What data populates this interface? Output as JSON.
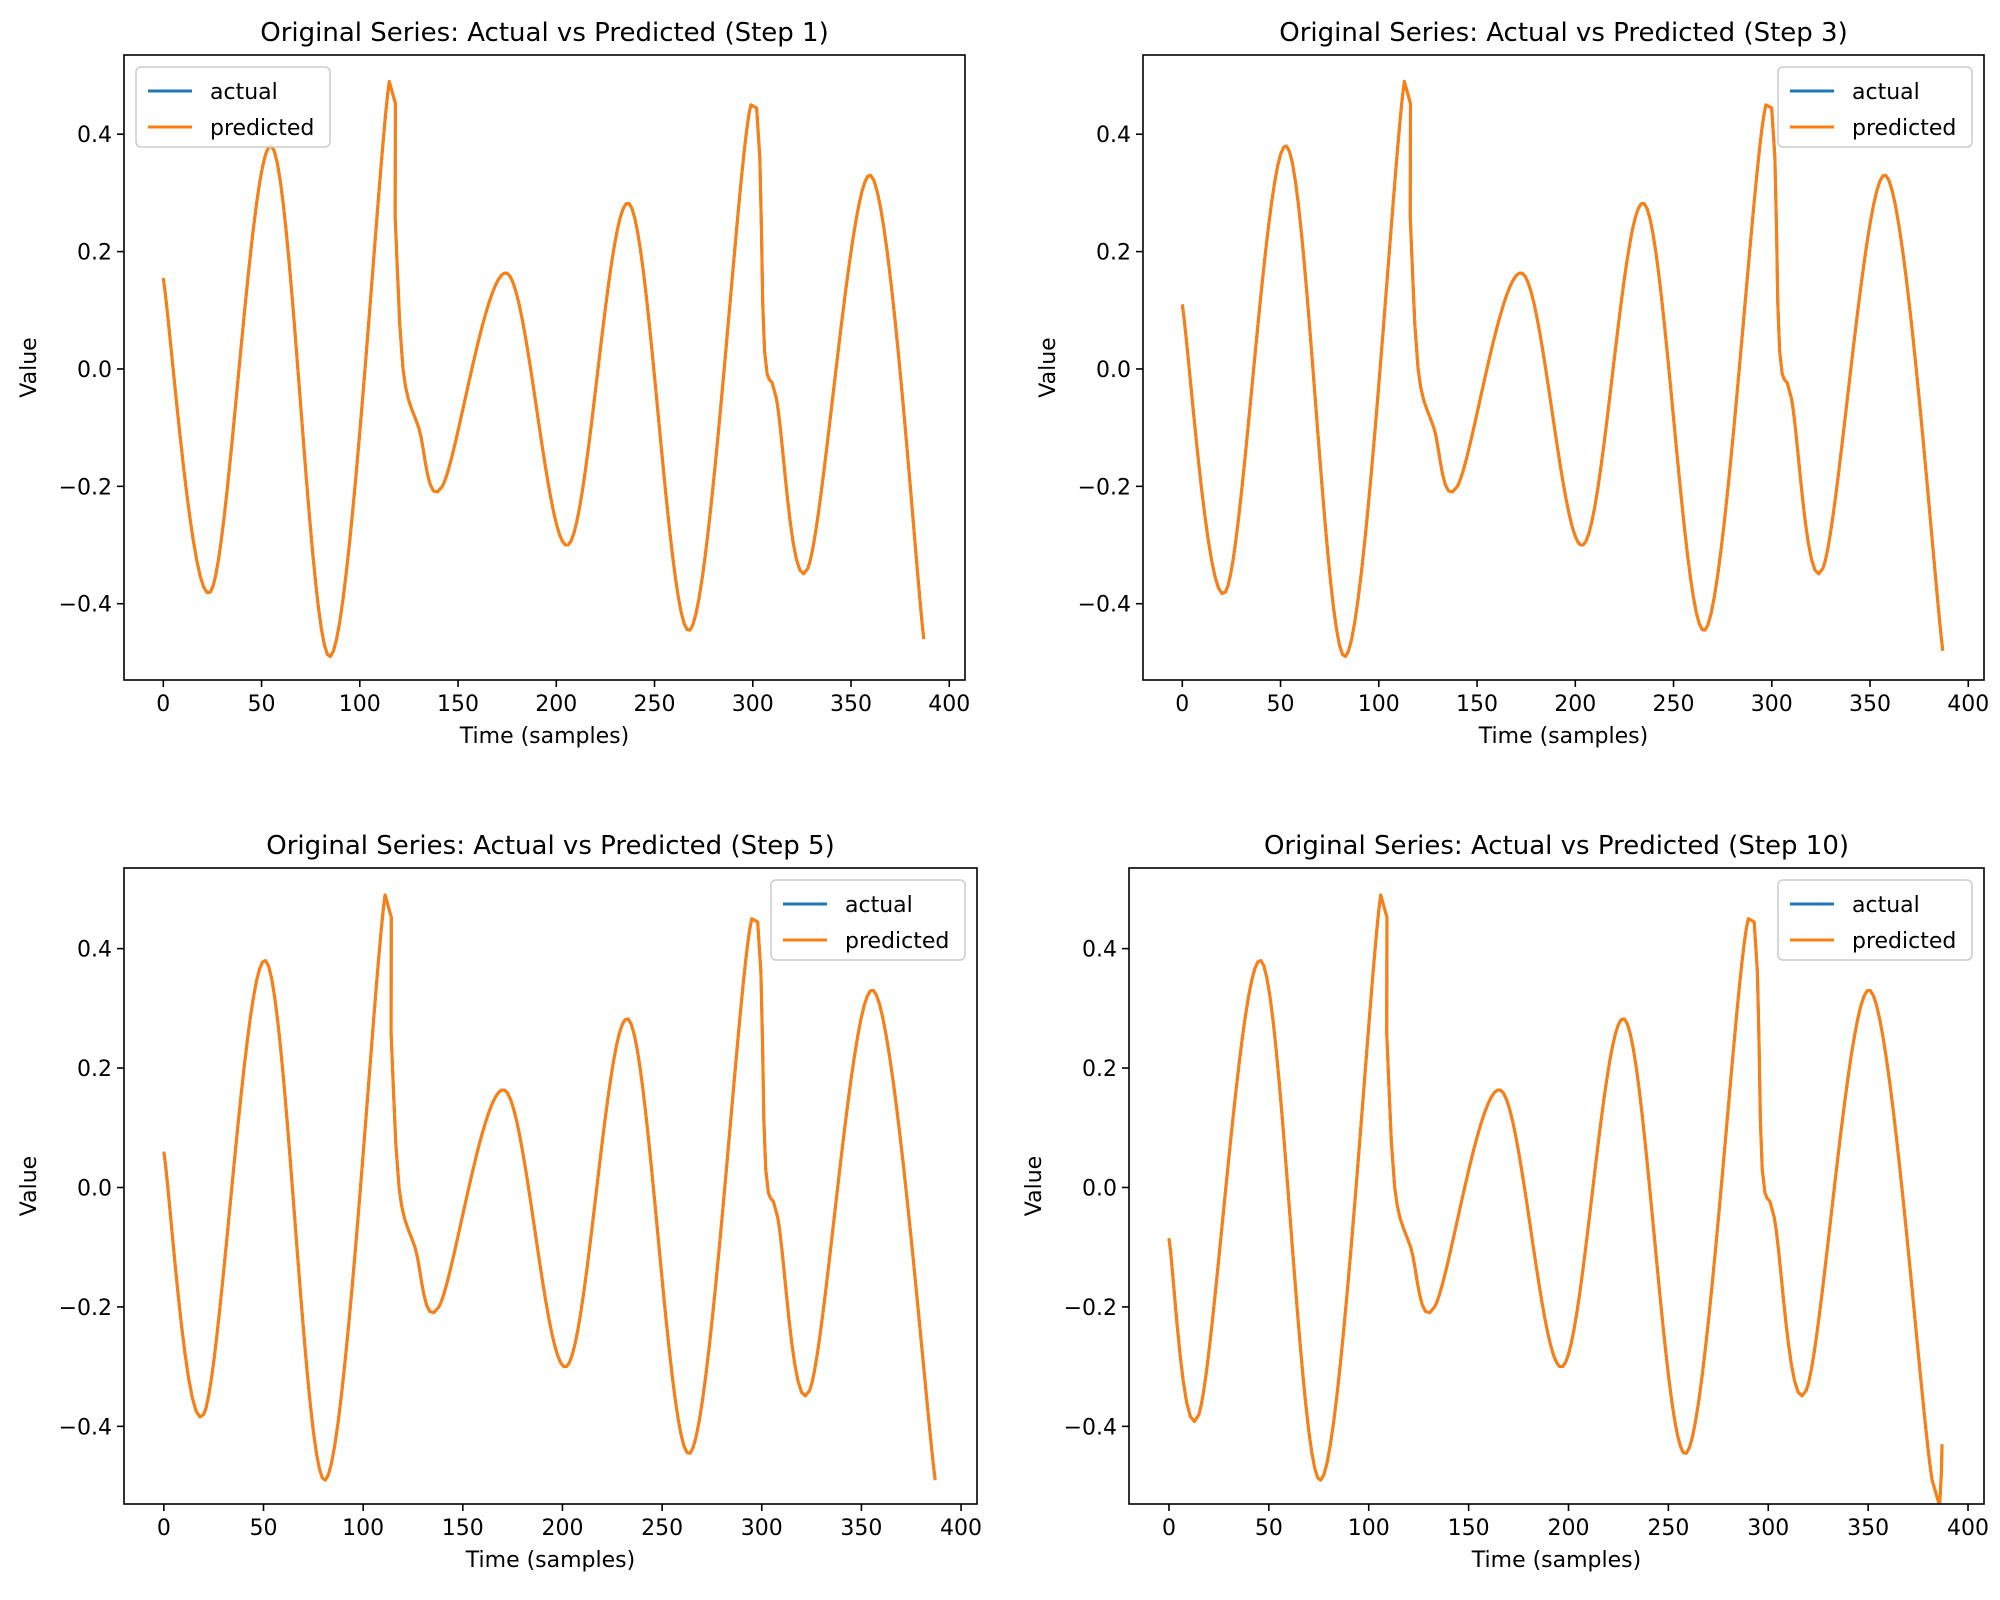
{
  "chart_data": [
    {
      "type": "line",
      "title": "Original Series: Actual vs Predicted (Step 1)",
      "xlabel": "Time (samples)",
      "ylabel": "Value",
      "xlim": [
        -20,
        408
      ],
      "ylim": [
        -0.53,
        0.535
      ],
      "xticks": [
        0,
        50,
        100,
        150,
        200,
        250,
        300,
        350,
        400
      ],
      "yticks": [
        -0.4,
        -0.2,
        0.0,
        0.2,
        0.4
      ],
      "x_range": [
        0,
        387
      ],
      "legend": "top-left",
      "series": [
        {
          "name": "actual",
          "color": "#1f77b4",
          "points": [
            [
              0,
              0.155
            ],
            [
              24,
              -0.38
            ],
            [
              55,
              0.38
            ],
            [
              85,
              -0.49
            ],
            [
              115,
              0.49
            ],
            [
              118,
              0.26
            ],
            [
              122,
              0.0
            ],
            [
              130,
              -0.1
            ],
            [
              142,
              -0.2
            ],
            [
              175,
              0.163
            ],
            [
              206,
              -0.3
            ],
            [
              237,
              0.282
            ],
            [
              268,
              -0.445
            ],
            [
              299,
              0.45
            ],
            [
              306,
              0.03
            ],
            [
              312,
              -0.05
            ],
            [
              328,
              -0.34
            ],
            [
              360,
              0.33
            ],
            [
              387,
              -0.46
            ]
          ]
        },
        {
          "name": "predicted",
          "color": "#ff7f0e",
          "points": [
            [
              0,
              0.155
            ],
            [
              24,
              -0.38
            ],
            [
              55,
              0.38
            ],
            [
              85,
              -0.49
            ],
            [
              115,
              0.49
            ],
            [
              118,
              0.26
            ],
            [
              122,
              0.0
            ],
            [
              130,
              -0.1
            ],
            [
              142,
              -0.2
            ],
            [
              175,
              0.163
            ],
            [
              206,
              -0.3
            ],
            [
              237,
              0.282
            ],
            [
              268,
              -0.445
            ],
            [
              299,
              0.45
            ],
            [
              306,
              0.03
            ],
            [
              312,
              -0.05
            ],
            [
              328,
              -0.34
            ],
            [
              360,
              0.33
            ],
            [
              387,
              -0.46
            ]
          ]
        }
      ]
    },
    {
      "type": "line",
      "title": "Original Series: Actual vs Predicted (Step 3)",
      "xlabel": "Time (samples)",
      "ylabel": "Value",
      "xlim": [
        -20,
        408
      ],
      "ylim": [
        -0.53,
        0.535
      ],
      "xticks": [
        0,
        50,
        100,
        150,
        200,
        250,
        300,
        350,
        400
      ],
      "yticks": [
        -0.4,
        -0.2,
        0.0,
        0.2,
        0.4
      ],
      "x_range": [
        0,
        387
      ],
      "legend": "top-right",
      "series": [
        {
          "name": "actual",
          "color": "#1f77b4",
          "points": [
            [
              0,
              0.11
            ],
            [
              22,
              -0.38
            ],
            [
              53,
              0.38
            ],
            [
              83,
              -0.49
            ],
            [
              113,
              0.49
            ],
            [
              116,
              0.26
            ],
            [
              120,
              0.0
            ],
            [
              128,
              -0.1
            ],
            [
              140,
              -0.2
            ],
            [
              173,
              0.163
            ],
            [
              204,
              -0.3
            ],
            [
              235,
              0.282
            ],
            [
              266,
              -0.445
            ],
            [
              297,
              0.45
            ],
            [
              304,
              0.03
            ],
            [
              310,
              -0.05
            ],
            [
              326,
              -0.34
            ],
            [
              358,
              0.33
            ],
            [
              387,
              -0.48
            ]
          ]
        },
        {
          "name": "predicted",
          "color": "#ff7f0e",
          "points": [
            [
              0,
              0.11
            ],
            [
              22,
              -0.38
            ],
            [
              53,
              0.38
            ],
            [
              83,
              -0.49
            ],
            [
              113,
              0.49
            ],
            [
              116,
              0.26
            ],
            [
              120,
              0.0
            ],
            [
              128,
              -0.1
            ],
            [
              140,
              -0.2
            ],
            [
              173,
              0.163
            ],
            [
              204,
              -0.3
            ],
            [
              235,
              0.282
            ],
            [
              266,
              -0.445
            ],
            [
              297,
              0.45
            ],
            [
              304,
              0.03
            ],
            [
              310,
              -0.05
            ],
            [
              326,
              -0.34
            ],
            [
              358,
              0.33
            ],
            [
              387,
              -0.48
            ]
          ]
        }
      ]
    },
    {
      "type": "line",
      "title": "Original Series: Actual vs Predicted (Step 5)",
      "xlabel": "Time (samples)",
      "ylabel": "Value",
      "xlim": [
        -20,
        408
      ],
      "ylim": [
        -0.53,
        0.535
      ],
      "xticks": [
        0,
        50,
        100,
        150,
        200,
        250,
        300,
        350,
        400
      ],
      "yticks": [
        -0.4,
        -0.2,
        0.0,
        0.2,
        0.4
      ],
      "x_range": [
        0,
        387
      ],
      "legend": "top-right",
      "series": [
        {
          "name": "actual",
          "color": "#1f77b4",
          "points": [
            [
              0,
              0.06
            ],
            [
              20,
              -0.38
            ],
            [
              51,
              0.38
            ],
            [
              81,
              -0.49
            ],
            [
              111,
              0.49
            ],
            [
              114,
              0.26
            ],
            [
              118,
              0.0
            ],
            [
              126,
              -0.1
            ],
            [
              138,
              -0.2
            ],
            [
              171,
              0.163
            ],
            [
              202,
              -0.3
            ],
            [
              233,
              0.282
            ],
            [
              264,
              -0.445
            ],
            [
              295,
              0.45
            ],
            [
              302,
              0.03
            ],
            [
              308,
              -0.05
            ],
            [
              324,
              -0.34
            ],
            [
              356,
              0.33
            ],
            [
              387,
              -0.49
            ]
          ]
        },
        {
          "name": "predicted",
          "color": "#ff7f0e",
          "points": [
            [
              0,
              0.06
            ],
            [
              20,
              -0.38
            ],
            [
              51,
              0.38
            ],
            [
              81,
              -0.49
            ],
            [
              111,
              0.49
            ],
            [
              114,
              0.26
            ],
            [
              118,
              0.0
            ],
            [
              126,
              -0.1
            ],
            [
              138,
              -0.2
            ],
            [
              171,
              0.163
            ],
            [
              202,
              -0.3
            ],
            [
              233,
              0.282
            ],
            [
              264,
              -0.445
            ],
            [
              295,
              0.45
            ],
            [
              302,
              0.03
            ],
            [
              308,
              -0.05
            ],
            [
              324,
              -0.34
            ],
            [
              356,
              0.33
            ],
            [
              387,
              -0.49
            ]
          ]
        }
      ]
    },
    {
      "type": "line",
      "title": "Original Series: Actual vs Predicted (Step 10)",
      "xlabel": "Time (samples)",
      "ylabel": "Value",
      "xlim": [
        -20,
        408
      ],
      "ylim": [
        -0.53,
        0.535
      ],
      "xticks": [
        0,
        50,
        100,
        150,
        200,
        250,
        300,
        350,
        400
      ],
      "yticks": [
        -0.4,
        -0.2,
        0.0,
        0.2,
        0.4
      ],
      "x_range": [
        0,
        387
      ],
      "legend": "top-right",
      "series": [
        {
          "name": "actual",
          "color": "#1f77b4",
          "points": [
            [
              0,
              -0.085
            ],
            [
              15,
              -0.38
            ],
            [
              46,
              0.38
            ],
            [
              76,
              -0.49
            ],
            [
              106,
              0.49
            ],
            [
              109,
              0.26
            ],
            [
              113,
              0.0
            ],
            [
              121,
              -0.1
            ],
            [
              133,
              -0.2
            ],
            [
              166,
              0.163
            ],
            [
              197,
              -0.3
            ],
            [
              228,
              0.282
            ],
            [
              259,
              -0.445
            ],
            [
              290,
              0.45
            ],
            [
              297,
              0.03
            ],
            [
              303,
              -0.05
            ],
            [
              319,
              -0.34
            ],
            [
              351,
              0.33
            ],
            [
              382,
              -0.49
            ],
            [
              387,
              -0.43
            ]
          ]
        },
        {
          "name": "predicted",
          "color": "#ff7f0e",
          "points": [
            [
              0,
              -0.085
            ],
            [
              15,
              -0.38
            ],
            [
              46,
              0.38
            ],
            [
              76,
              -0.49
            ],
            [
              106,
              0.49
            ],
            [
              109,
              0.26
            ],
            [
              113,
              0.0
            ],
            [
              121,
              -0.1
            ],
            [
              133,
              -0.2
            ],
            [
              166,
              0.163
            ],
            [
              197,
              -0.3
            ],
            [
              228,
              0.282
            ],
            [
              259,
              -0.445
            ],
            [
              290,
              0.45
            ],
            [
              297,
              0.03
            ],
            [
              303,
              -0.05
            ],
            [
              319,
              -0.34
            ],
            [
              351,
              0.33
            ],
            [
              382,
              -0.49
            ],
            [
              387,
              -0.43
            ]
          ]
        }
      ]
    }
  ]
}
